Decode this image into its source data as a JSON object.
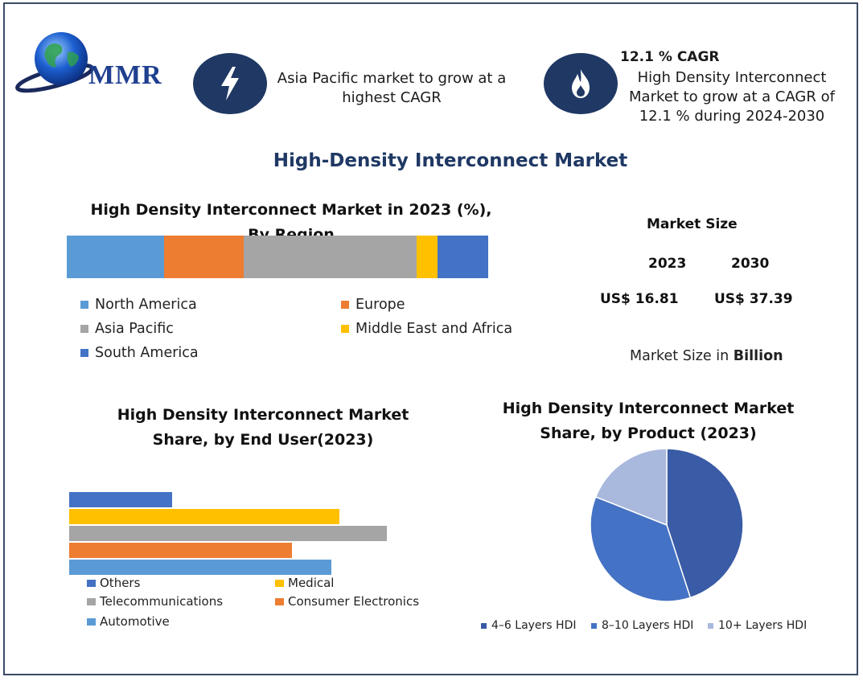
{
  "logo": {
    "text": "MMR"
  },
  "colors": {
    "navy": "#1f3864",
    "accent_blue": "#1f3f8f"
  },
  "info_left": {
    "icon": "lightning-icon",
    "text": "Asia Pacific market to grow at a highest CAGR"
  },
  "info_right": {
    "icon": "flame-icon",
    "title": "12.1 % CAGR",
    "text": "High Density Interconnect Market to grow at a CAGR of 12.1 % during 2024-2030"
  },
  "main_title": "High-Density Interconnect Market",
  "market_size": {
    "title": "Market Size",
    "years": [
      "2023",
      "2030"
    ],
    "values": [
      "US$ 16.81",
      "US$ 37.39"
    ],
    "note_prefix": "Market Size in ",
    "note_bold": "Billion"
  },
  "chart_data": [
    {
      "type": "bar",
      "orientation": "horizontal-stacked",
      "title": "High Density Interconnect Market in 2023 (%), By Region",
      "series": [
        {
          "name": "North America",
          "value": 23,
          "color": "#5b9bd5"
        },
        {
          "name": "Europe",
          "value": 19,
          "color": "#ed7d31"
        },
        {
          "name": "Asia Pacific",
          "value": 41,
          "color": "#a5a5a5"
        },
        {
          "name": "Middle East and Africa",
          "value": 5,
          "color": "#ffc000"
        },
        {
          "name": "South America",
          "value": 12,
          "color": "#4472c4"
        }
      ],
      "legend": "bottom"
    },
    {
      "type": "bar",
      "orientation": "horizontal",
      "title": "High Density Interconnect Market Share, by End User(2023)",
      "categories": [
        "Others",
        "Medical",
        "Telecommunications",
        "Consumer Electronics",
        "Automotive"
      ],
      "values": [
        13,
        34,
        40,
        28,
        33
      ],
      "colors": [
        "#4472c4",
        "#ffc000",
        "#a5a5a5",
        "#ed7d31",
        "#5b9bd5"
      ],
      "legend": "bottom"
    },
    {
      "type": "pie",
      "title": "High Density Interconnect Market Share, by Product (2023)",
      "categories": [
        "4–6 Layers HDI",
        "8–10 Layers HDI",
        "10+ Layers HDI"
      ],
      "values": [
        45,
        36,
        19
      ],
      "colors": [
        "#3a5ba5",
        "#4472c4",
        "#a9b8dd"
      ],
      "legend": "bottom"
    }
  ]
}
